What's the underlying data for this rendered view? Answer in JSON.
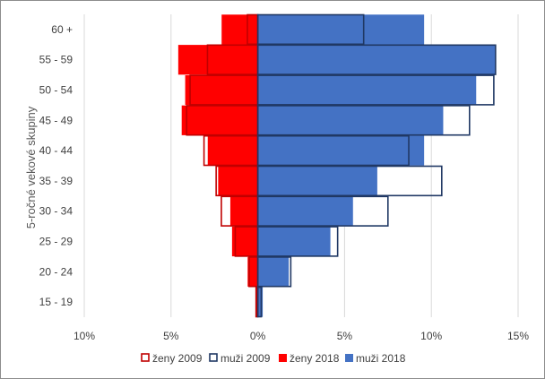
{
  "chart_data": {
    "type": "bar",
    "orientation": "horizontal",
    "subtype": "population-pyramid",
    "title": "",
    "ylabel": "5-ročné vekové skupiny",
    "xlabel": "",
    "xlim": [
      -10,
      15
    ],
    "x_ticks": [
      -10,
      -5,
      0,
      5,
      10,
      15
    ],
    "x_tick_labels": [
      "10%",
      "5%",
      "0%",
      "5%",
      "10%",
      "15%"
    ],
    "grid": "vertical",
    "legend_position": "bottom",
    "categories": [
      "15 - 19",
      "20 - 24",
      "25 - 29",
      "30 - 34",
      "35 - 39",
      "40 - 44",
      "45 - 49",
      "50 - 54",
      "55 - 59",
      "60 +"
    ],
    "series": [
      {
        "name": "ženy 2009",
        "style": "outline",
        "color": "#c00000",
        "values": [
          -0.1,
          -0.5,
          -1.3,
          -2.1,
          -2.4,
          -3.1,
          -4.1,
          -3.9,
          -2.9,
          -0.6
        ]
      },
      {
        "name": "muži 2009",
        "style": "outline",
        "color": "#203864",
        "values": [
          0.2,
          1.9,
          4.6,
          7.5,
          10.6,
          8.7,
          12.2,
          13.6,
          13.7,
          6.1
        ]
      },
      {
        "name": "ženy 2018",
        "style": "filled",
        "color": "#ff0000",
        "values": [
          -0.1,
          -0.6,
          -1.5,
          -1.6,
          -2.3,
          -2.9,
          -4.4,
          -4.2,
          -4.6,
          -2.1
        ]
      },
      {
        "name": "muži 2018",
        "style": "filled",
        "color": "#4472c4",
        "values": [
          0.3,
          1.8,
          4.2,
          5.5,
          6.9,
          9.6,
          10.7,
          12.6,
          13.7,
          9.6
        ]
      }
    ]
  }
}
